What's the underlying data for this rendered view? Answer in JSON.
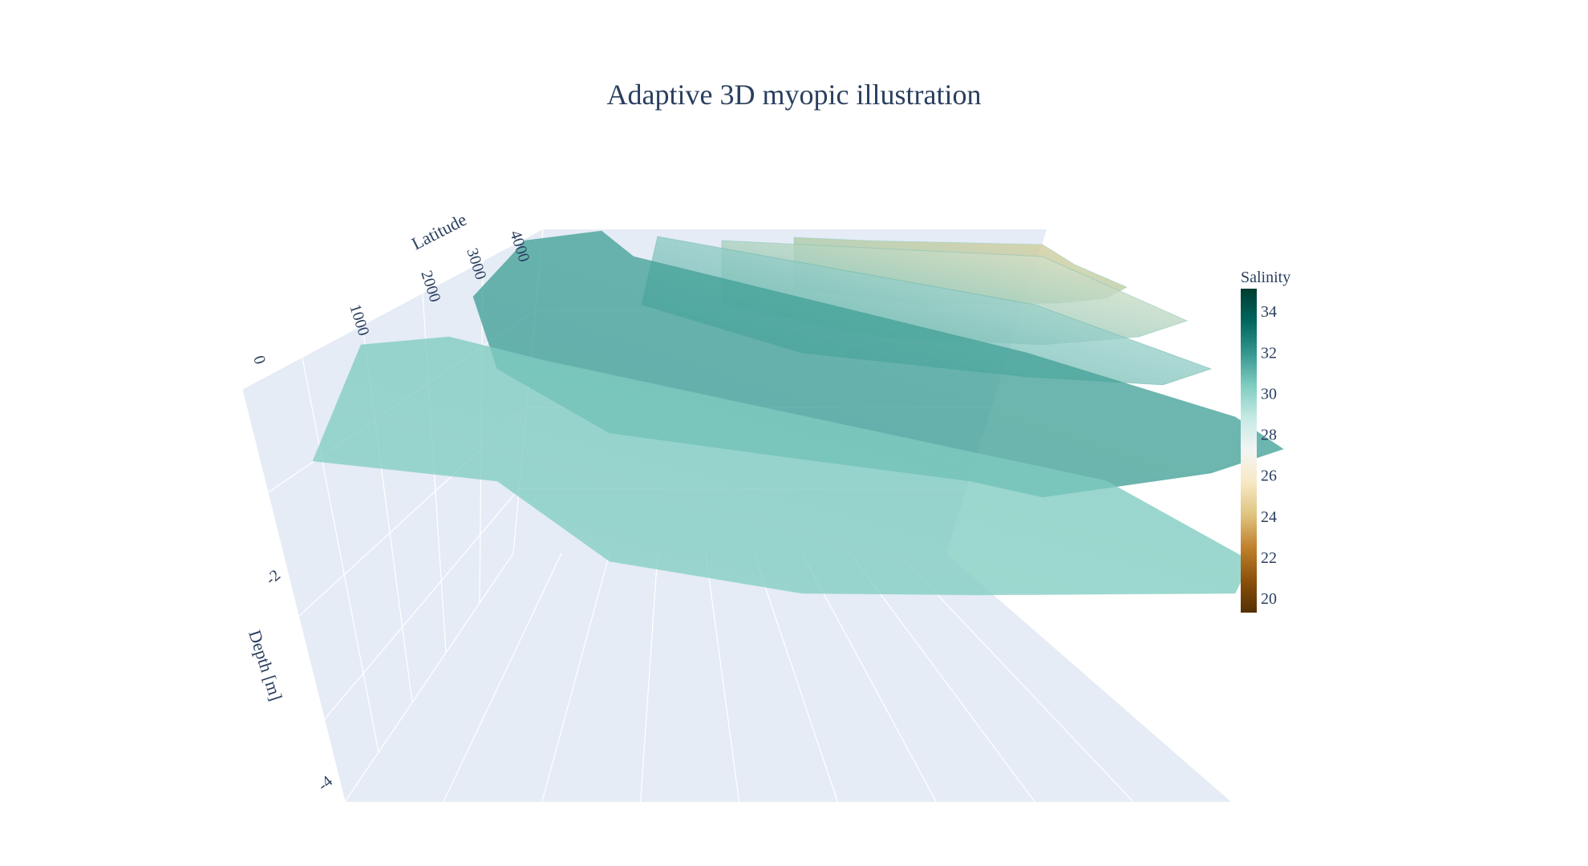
{
  "chart_data": {
    "type": "surface3d",
    "title": "Adaptive 3D myopic illustration",
    "axes": {
      "x": {
        "label": "",
        "visible_ticks": false
      },
      "y": {
        "label": "Latitude",
        "ticks": [
          0,
          1000,
          2000,
          3000,
          4000
        ]
      },
      "z": {
        "label": "Depth [m]",
        "ticks": [
          -2,
          -4
        ],
        "tick_labels": [
          "-2",
          "-4"
        ]
      }
    },
    "colorbar": {
      "title": "Salinity",
      "range": [
        19.3,
        35.1
      ],
      "ticks": [
        20,
        22,
        24,
        26,
        28,
        30,
        32,
        34
      ],
      "colorscale": [
        [
          0.0,
          "#543005"
        ],
        [
          0.1,
          "#8c510a"
        ],
        [
          0.2,
          "#bf812d"
        ],
        [
          0.3,
          "#dfc27d"
        ],
        [
          0.4,
          "#f6e8c3"
        ],
        [
          0.5,
          "#f5f5f5"
        ],
        [
          0.6,
          "#c7eae5"
        ],
        [
          0.7,
          "#80cdc1"
        ],
        [
          0.8,
          "#35978f"
        ],
        [
          0.9,
          "#01665e"
        ],
        [
          1.0,
          "#003c30"
        ]
      ]
    },
    "series": [
      {
        "layer": 1,
        "salinity_far": 24.5,
        "salinity_near": 30.5
      },
      {
        "layer": 2,
        "salinity_far": 26.0,
        "salinity_near": 31.0
      },
      {
        "layer": 3,
        "salinity_far": 28.5,
        "salinity_near": 31.5
      },
      {
        "layer": 4,
        "salinity_far": 31.5,
        "salinity_near": 31.8
      },
      {
        "layer": 5,
        "salinity_far": 30.5,
        "salinity_near": 30.2
      }
    ],
    "scene": {
      "background": "#e5ecf6",
      "grid_color": "#ffffff",
      "grid": true
    }
  }
}
